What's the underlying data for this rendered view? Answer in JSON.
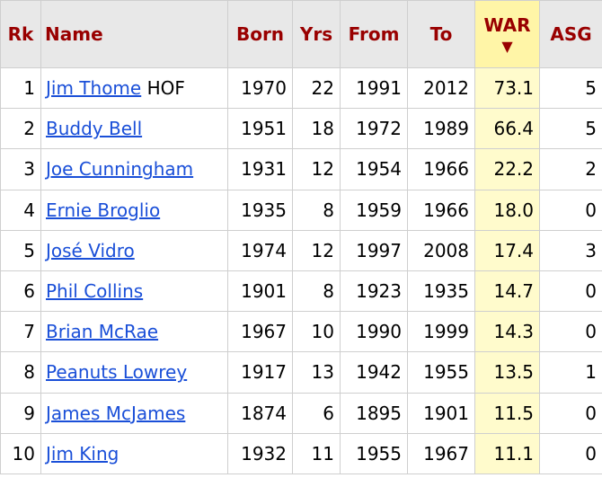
{
  "columns": {
    "rk": "Rk",
    "name": "Name",
    "born": "Born",
    "yrs": "Yrs",
    "from": "From",
    "to": "To",
    "war": "WAR",
    "war_sort_indicator": "▼",
    "asg": "ASG"
  },
  "rows": [
    {
      "rk": "1",
      "name": "Jim Thome",
      "tag": "HOF",
      "born": "1970",
      "yrs": "22",
      "from": "1991",
      "to": "2012",
      "war": "73.1",
      "asg": "5"
    },
    {
      "rk": "2",
      "name": "Buddy Bell",
      "tag": "",
      "born": "1951",
      "yrs": "18",
      "from": "1972",
      "to": "1989",
      "war": "66.4",
      "asg": "5"
    },
    {
      "rk": "3",
      "name": "Joe Cunningham",
      "tag": "",
      "born": "1931",
      "yrs": "12",
      "from": "1954",
      "to": "1966",
      "war": "22.2",
      "asg": "2"
    },
    {
      "rk": "4",
      "name": "Ernie Broglio",
      "tag": "",
      "born": "1935",
      "yrs": "8",
      "from": "1959",
      "to": "1966",
      "war": "18.0",
      "asg": "0"
    },
    {
      "rk": "5",
      "name": "José Vidro",
      "tag": "",
      "born": "1974",
      "yrs": "12",
      "from": "1997",
      "to": "2008",
      "war": "17.4",
      "asg": "3"
    },
    {
      "rk": "6",
      "name": "Phil Collins",
      "tag": "",
      "born": "1901",
      "yrs": "8",
      "from": "1923",
      "to": "1935",
      "war": "14.7",
      "asg": "0"
    },
    {
      "rk": "7",
      "name": "Brian McRae",
      "tag": "",
      "born": "1967",
      "yrs": "10",
      "from": "1990",
      "to": "1999",
      "war": "14.3",
      "asg": "0"
    },
    {
      "rk": "8",
      "name": "Peanuts Lowrey",
      "tag": "",
      "born": "1917",
      "yrs": "13",
      "from": "1942",
      "to": "1955",
      "war": "13.5",
      "asg": "1"
    },
    {
      "rk": "9",
      "name": "James McJames",
      "tag": "",
      "born": "1874",
      "yrs": "6",
      "from": "1895",
      "to": "1901",
      "war": "11.5",
      "asg": "0"
    },
    {
      "rk": "10",
      "name": "Jim King",
      "tag": "",
      "born": "1932",
      "yrs": "11",
      "from": "1955",
      "to": "1967",
      "war": "11.1",
      "asg": "0"
    }
  ],
  "colors": {
    "header_text": "#990000",
    "header_bg": "#e8e8e8",
    "sorted_header_bg": "#fff5a7",
    "sorted_cell_bg": "#fffbcc",
    "link": "#1a4fd8"
  }
}
